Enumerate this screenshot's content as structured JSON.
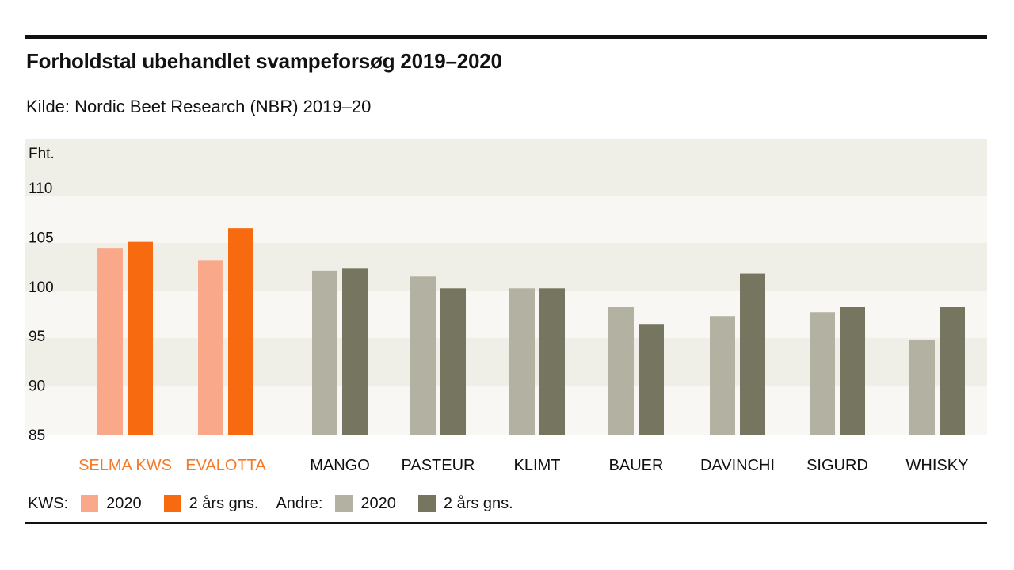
{
  "header": {
    "title": "Forholdstal ubehandlet svampeforsøg 2019–2020",
    "subtitle": "Kilde: Nordic Beet Research (NBR) 2019–20"
  },
  "legend": {
    "kws_label": "KWS:",
    "andre_label": "Andre:",
    "kws_2020": "2020",
    "kws_avg": "2 års gns.",
    "andre_2020": "2020",
    "andre_avg": "2 års gns."
  },
  "colors": {
    "kws_2020": "#f9a98a",
    "kws_avg": "#f86a10",
    "andre_2020": "#b3b1a1",
    "andre_avg": "#76755f",
    "kws_text": "#f47a2a",
    "band_dark": "#f0efe7",
    "band_light": "#f8f7f3"
  },
  "chart_data": {
    "type": "bar",
    "title": "Forholdstal ubehandlet svampeforsøg 2019–2020",
    "ylabel": "Fht.",
    "xlabel": "",
    "ylim": [
      85,
      110
    ],
    "yticks": [
      85,
      90,
      95,
      100,
      105,
      110
    ],
    "categories": [
      "SELMA KWS",
      "EVALOTTA",
      "MANGO",
      "PASTEUR",
      "KLIMT",
      "BAUER",
      "DAVINCHI",
      "SIGURD",
      "WHISKY"
    ],
    "groups": [
      "KWS",
      "KWS",
      "Andre",
      "Andre",
      "Andre",
      "Andre",
      "Andre",
      "Andre",
      "Andre"
    ],
    "series": [
      {
        "name": "2020",
        "values": [
          103.9,
          102.6,
          101.6,
          101.0,
          99.8,
          97.9,
          97.0,
          97.4,
          94.6
        ]
      },
      {
        "name": "2 års gns.",
        "values": [
          104.5,
          105.9,
          101.8,
          99.8,
          99.8,
          96.2,
          101.3,
          97.9,
          97.9
        ]
      }
    ],
    "legend_position": "bottom"
  }
}
